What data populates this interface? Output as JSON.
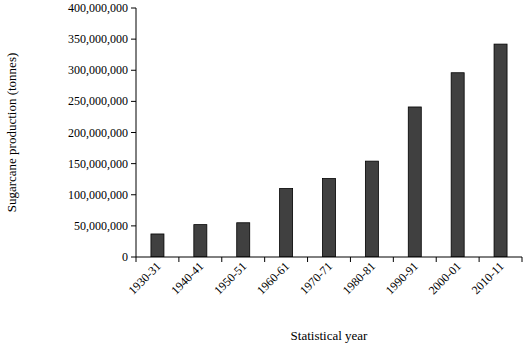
{
  "chart_data": {
    "type": "bar",
    "x_label": "Statistical year",
    "y_label": "Sugarcane production  (tonnes)",
    "categories": [
      "1930-31",
      "1940-41",
      "1950-51",
      "1960-61",
      "1970-71",
      "1980-81",
      "1990-91",
      "2000-01",
      "2010-11"
    ],
    "values": [
      37000000,
      52000000,
      55000000,
      110000000,
      126000000,
      154000000,
      241000000,
      296000000,
      342000000
    ],
    "color": "#404040",
    "ylim": [
      0,
      400000000
    ],
    "yticks": [
      0,
      {
        "value": 50000000,
        "label": "50,000,000"
      },
      {
        "value": 100000000,
        "label": "100,000,000"
      },
      {
        "value": 150000000,
        "label": "150,000,000"
      },
      {
        "value": 200000000,
        "label": "200,000,000"
      },
      {
        "value": 250000000,
        "label": "250,000,000"
      },
      {
        "value": 300000000,
        "label": "300,000,000"
      },
      {
        "value": 350000000,
        "label": "350,000,000"
      },
      {
        "value": 400000000,
        "label": "400,000,000"
      }
    ],
    "grid": false
  }
}
